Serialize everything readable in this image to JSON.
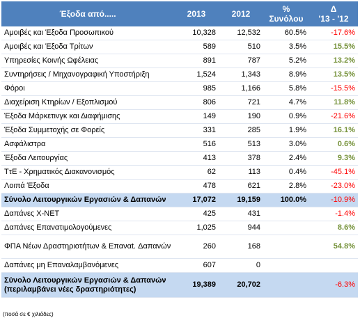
{
  "header": {
    "label": "Έξοδα από.....",
    "col2013": "2013",
    "col2012": "2012",
    "pct_line1": "%",
    "pct_line2": "Συνόλου",
    "delta_line1": "Δ",
    "delta_line2": "'13 - '12"
  },
  "rows": [
    {
      "label": "Αμοιβές και Έξοδα Προσωπικού",
      "v2013": "10,328",
      "v2012": "12,532",
      "pct": "60.5%",
      "delta": "-17.6%"
    },
    {
      "label": "Αμοιβές και Έξοδα Τρίτων",
      "v2013": "589",
      "v2012": "510",
      "pct": "3.5%",
      "delta": "15.5%"
    },
    {
      "label": "Υπηρεσίες Κοινής Ωφέλειας",
      "v2013": "891",
      "v2012": "787",
      "pct": "5.2%",
      "delta": "13.2%"
    },
    {
      "label": "Συντηρήσεις / Μηχανογραφική Υποστήριξη",
      "v2013": "1,524",
      "v2012": "1,343",
      "pct": "8.9%",
      "delta": "13.5%"
    },
    {
      "label": "Φόροι",
      "v2013": "985",
      "v2012": "1,166",
      "pct": "5.8%",
      "delta": "-15.5%"
    },
    {
      "label": "Διαχείριση Κτηρίων / Εξοπλισμού",
      "v2013": "806",
      "v2012": "721",
      "pct": "4.7%",
      "delta": "11.8%"
    },
    {
      "label": "Έξοδα Μάρκετινγκ και Διαφήμισης",
      "v2013": "149",
      "v2012": "190",
      "pct": "0.9%",
      "delta": "-21.6%"
    },
    {
      "label": "Έξοδα Συμμετοχής σε Φορείς",
      "v2013": "331",
      "v2012": "285",
      "pct": "1.9%",
      "delta": "16.1%"
    },
    {
      "label": "Ασφάλιστρα",
      "v2013": "516",
      "v2012": "513",
      "pct": "3.0%",
      "delta": "0.6%"
    },
    {
      "label": "Έξοδα Λειτουργίας",
      "v2013": "413",
      "v2012": "378",
      "pct": "2.4%",
      "delta": "9.3%"
    },
    {
      "label": "ΤτΕ - Χρηματικός Διακανονισμός",
      "v2013": "62",
      "v2012": "113",
      "pct": "0.4%",
      "delta": "-45.1%"
    },
    {
      "label": "Λοιπά Έξοδα",
      "v2013": "478",
      "v2012": "621",
      "pct": "2.8%",
      "delta": "-23.0%"
    }
  ],
  "subtotal": {
    "label": "Σύνολο Λειτουργικών Εργασιών & Δαπανών",
    "v2013": "17,072",
    "v2012": "19,159",
    "pct": "100.0%",
    "delta": "-10.9%"
  },
  "extra_rows": [
    {
      "label": "Δαπάνες X-NET",
      "v2013": "425",
      "v2012": "431",
      "pct": "",
      "delta": "-1.4%"
    },
    {
      "label": "Δαπάνες Επανατιμολογούμενες",
      "v2013": "1,025",
      "v2012": "944",
      "pct": "",
      "delta": "8.6%"
    },
    {
      "label": "ΦΠΑ Νέων Δραστηριοτήτων & Επαναt. Δαπανών",
      "v2013": "260",
      "v2012": "168",
      "pct": "",
      "delta": "54.8%"
    },
    {
      "label": "Δαπάνες μη Επαναλαμβανόμενες",
      "v2013": "607",
      "v2012": "0",
      "pct": "",
      "delta": ""
    }
  ],
  "total": {
    "label": "Σύνολο Λειτουργικών Εργασιών & Δαπανών (περιλαμβάνει νέες δραστηριότητες)",
    "v2013": "19,389",
    "v2012": "20,702",
    "pct": "",
    "delta": "-6.3%"
  },
  "note": "(ποσά σε € χιλιάδες)",
  "colors": {
    "header_bg": "#4f81bd",
    "total_bg": "#c5d9f1",
    "positive": "#77933c",
    "negative": "#ff0000"
  }
}
